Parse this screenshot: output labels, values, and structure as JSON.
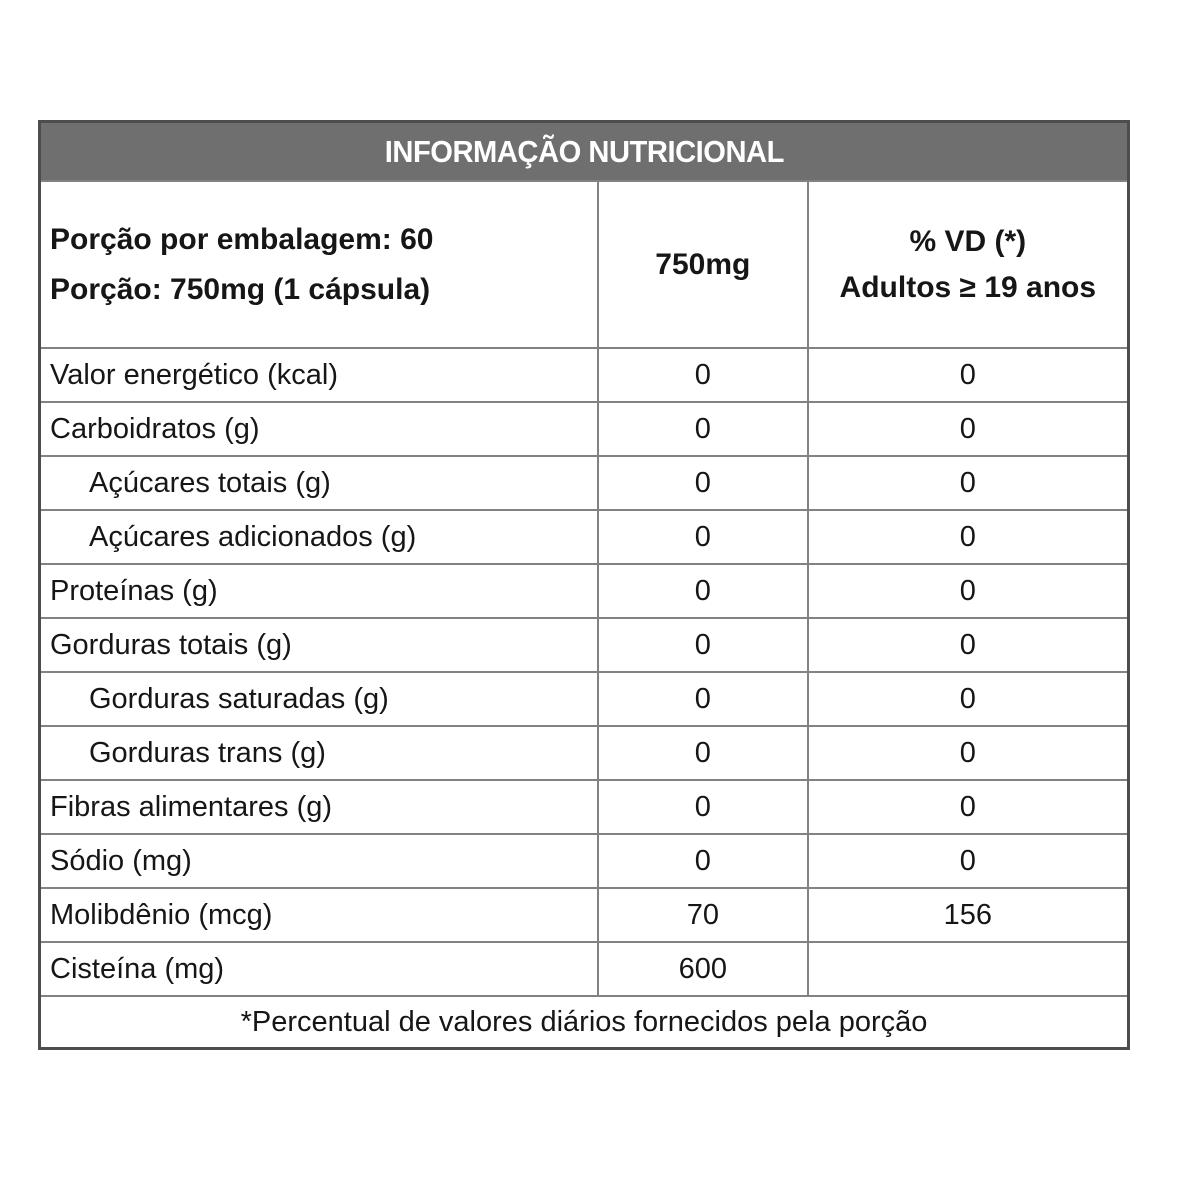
{
  "table": {
    "title": "INFORMAÇÃO NUTRICIONAL",
    "header": {
      "portion_line1": "Porção por embalagem: 60",
      "portion_line2": "Porção: 750mg (1 cápsula)",
      "amount_col": "750mg",
      "vd_line1": "% VD (*)",
      "vd_line2": "Adultos ≥ 19 anos"
    },
    "rows": [
      {
        "label": "Valor energético (kcal)",
        "amount": "0",
        "vd": "0",
        "indent": false
      },
      {
        "label": "Carboidratos (g)",
        "amount": "0",
        "vd": "0",
        "indent": false
      },
      {
        "label": "Açúcares totais (g)",
        "amount": "0",
        "vd": "0",
        "indent": true
      },
      {
        "label": "Açúcares adicionados (g)",
        "amount": "0",
        "vd": "0",
        "indent": true
      },
      {
        "label": "Proteínas (g)",
        "amount": "0",
        "vd": "0",
        "indent": false
      },
      {
        "label": "Gorduras totais (g)",
        "amount": "0",
        "vd": "0",
        "indent": false
      },
      {
        "label": "Gorduras saturadas (g)",
        "amount": "0",
        "vd": "0",
        "indent": true
      },
      {
        "label": "Gorduras trans (g)",
        "amount": "0",
        "vd": "0",
        "indent": true
      },
      {
        "label": "Fibras alimentares (g)",
        "amount": "0",
        "vd": "0",
        "indent": false
      },
      {
        "label": "Sódio (mg)",
        "amount": "0",
        "vd": "0",
        "indent": false
      },
      {
        "label": "Molibdênio (mcg)",
        "amount": "70",
        "vd": "156",
        "indent": false
      },
      {
        "label": "Cisteína (mg)",
        "amount": "600",
        "vd": "",
        "indent": false
      }
    ],
    "footnote": "*Percentual de valores diários fornecidos pela porção",
    "colors": {
      "title_bg": "#6f6f6f",
      "title_text": "#ffffff",
      "outer_border": "#4d4d4d",
      "inner_border": "#828282",
      "text": "#161616"
    }
  }
}
